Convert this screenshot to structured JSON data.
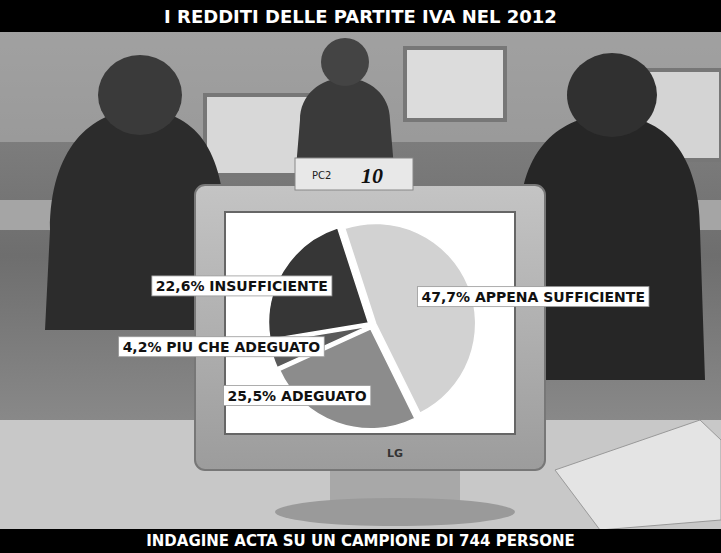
{
  "chart_data": {
    "type": "pie",
    "title": "I REDDITI DELLE PARTITE IVA NEL 2012",
    "subtitle": "INDAGINE ACTA SU UN CAMPIONE DI 744 PERSONE",
    "categories": [
      "APPENA SUFFICIENTE",
      "ADEGUATO",
      "PIU CHE ADEGUATO",
      "INSUFFICIENTE"
    ],
    "values": [
      47.7,
      25.5,
      4.2,
      22.6
    ],
    "value_labels": [
      "47,7%",
      "25,5%",
      "4,2%",
      "22,6%"
    ],
    "colors": [
      "#d2d2d2",
      "#8c8c8c",
      "#5a5a5a",
      "#363636"
    ],
    "data_labels": true,
    "annotations": [
      "PC2",
      "10",
      "LG"
    ]
  }
}
